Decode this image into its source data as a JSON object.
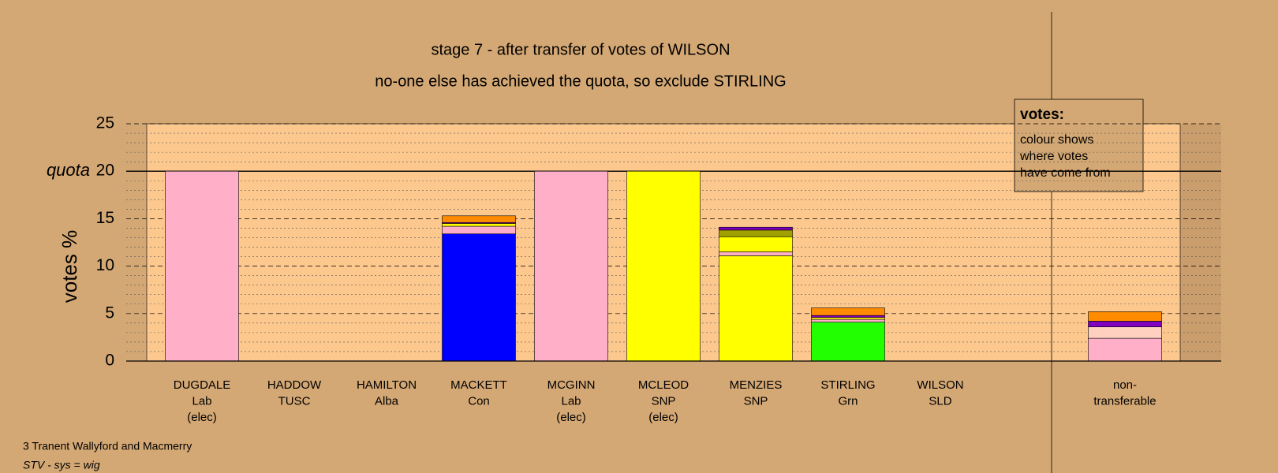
{
  "chart_data": {
    "type": "stacked-bar",
    "title": "stage 7 - after transfer of votes of WILSON",
    "subtitle": "no-one else has achieved the quota, so exclude STIRLING",
    "y_label": "votes %",
    "categories": [
      [
        "DUGDALE",
        "Lab",
        "(elec)"
      ],
      [
        "HADDOW",
        "TUSC"
      ],
      [
        "HAMILTON",
        "Alba"
      ],
      [
        "MACKETT",
        "Con"
      ],
      [
        "MCGINN",
        "Lab",
        "(elec)"
      ],
      [
        "MCLEOD",
        "SNP",
        "(elec)"
      ],
      [
        "MENZIES",
        "SNP"
      ],
      [
        "STIRLING",
        "Grn"
      ],
      [
        "WILSON",
        "SLD"
      ],
      [
        "non-",
        "transferable"
      ]
    ],
    "series": [
      {
        "colors": [
          "#ffb0c8",
          null,
          null,
          "#0000ff",
          "#ffb0c8",
          "#ffff00",
          "#ffff00",
          "#22ff00",
          null,
          null
        ],
        "values": [
          20,
          0,
          0,
          13.4,
          20,
          20,
          11.1,
          4.1,
          0,
          0
        ]
      },
      {
        "color": "#ffb0c8",
        "values": [
          0,
          0,
          0,
          0.8,
          0,
          0,
          0.4,
          0.3,
          0,
          2.4
        ]
      },
      {
        "color": "#ffff00",
        "values": [
          0,
          0,
          0,
          0.3,
          0,
          0,
          1.6,
          0.2,
          0,
          0
        ]
      },
      {
        "color": "#ffd0c0",
        "values": [
          0,
          0,
          0,
          0,
          0,
          0,
          0,
          0,
          0,
          1.2
        ]
      },
      {
        "color": "#a0a000",
        "values": [
          0,
          0,
          0,
          0,
          0,
          0,
          0.7,
          0,
          0,
          0
        ]
      },
      {
        "color": "#8000c0",
        "values": [
          0,
          0,
          0,
          0.1,
          0,
          0,
          0.3,
          0.2,
          0,
          0.6
        ]
      },
      {
        "color": "#ff8c00",
        "values": [
          0,
          0,
          0,
          0.7,
          0,
          0,
          0,
          0.8,
          0,
          1.0
        ]
      }
    ],
    "ylim": [
      0,
      25
    ],
    "yticks": [
      0,
      5,
      10,
      15,
      20,
      25
    ],
    "minor_yticks": [
      1,
      2,
      3,
      4,
      6,
      7,
      8,
      9,
      11,
      12,
      13,
      14,
      16,
      17,
      18,
      19,
      21,
      22,
      23,
      24
    ],
    "quota": 20,
    "quota_label": "quota",
    "grid": true,
    "legend_box": {
      "title": "votes:",
      "lines": [
        "colour shows",
        "where votes",
        "have come from"
      ]
    },
    "footer": [
      "3 Tranent Wallyford and Macmerry",
      "STV - sys = wig"
    ]
  }
}
